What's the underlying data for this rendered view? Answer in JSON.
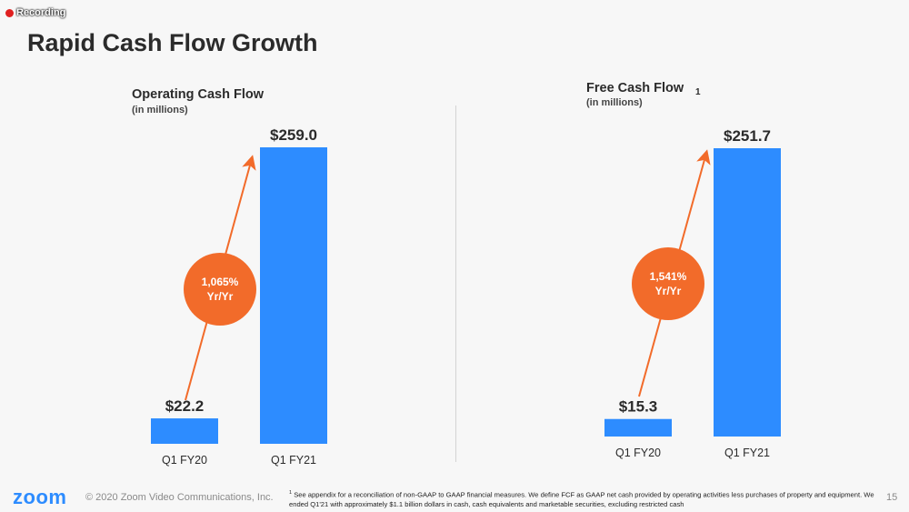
{
  "recording_label": "Recording",
  "slide_title": "Rapid Cash Flow Growth",
  "footer": {
    "logo": "zoom",
    "copyright": "© 2020 Zoom Video Communications, Inc.",
    "footnote_marker": "1",
    "footnote": "See appendix for a reconciliation of non-GAAP to GAAP financial measures. We define FCF as GAAP net cash provided by operating activities less purchases of property and equipment. We ended Q1'21 with approximately $1.1 billion dollars in cash, cash equivalents and marketable securities, excluding restricted cash",
    "page_number": "15"
  },
  "colors": {
    "bar": "#2d8cff",
    "growth": "#f26b2a",
    "title": "#2b2b2b"
  },
  "chart_data": [
    {
      "type": "bar",
      "title": "Operating Cash Flow",
      "subtitle": "(in millions)",
      "title_note": "",
      "categories": [
        "Q1 FY20",
        "Q1 FY21"
      ],
      "values": [
        22.2,
        259.0
      ],
      "value_labels": [
        "$22.2",
        "$259.0"
      ],
      "growth_label": [
        "1,065%",
        "Yr/Yr"
      ],
      "ylim": [
        0,
        259.0
      ],
      "grid": false
    },
    {
      "type": "bar",
      "title": "Free Cash Flow",
      "subtitle": "(in millions)",
      "title_note": "1",
      "categories": [
        "Q1 FY20",
        "Q1 FY21"
      ],
      "values": [
        15.3,
        251.7
      ],
      "value_labels": [
        "$15.3",
        "$251.7"
      ],
      "growth_label": [
        "1,541%",
        "Yr/Yr"
      ],
      "ylim": [
        0,
        251.7
      ],
      "grid": false
    }
  ]
}
